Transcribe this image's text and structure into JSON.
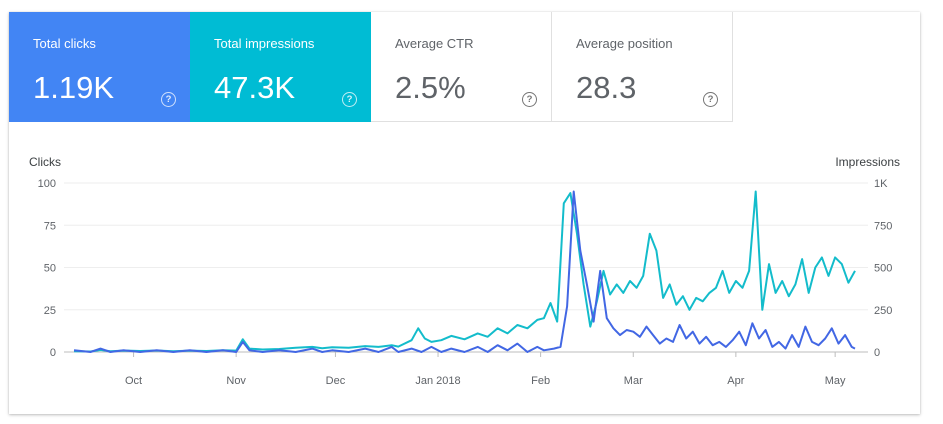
{
  "metrics": [
    {
      "label": "Total clicks",
      "value": "1.19K",
      "color": "#4285f4"
    },
    {
      "label": "Total impressions",
      "value": "47.3K",
      "color": "#00bcd4"
    },
    {
      "label": "Average CTR",
      "value": "2.5%"
    },
    {
      "label": "Average position",
      "value": "28.3"
    }
  ],
  "help_glyph": "?",
  "chart_data": {
    "type": "line",
    "xlabel": "",
    "y_left_label": "Clicks",
    "y_right_label": "Impressions",
    "y_left_ticks": [
      "0",
      "25",
      "50",
      "75",
      "100"
    ],
    "y_right_ticks": [
      "0",
      "250",
      "500",
      "750",
      "1K"
    ],
    "y_left_range": [
      0,
      100
    ],
    "y_right_range": [
      0,
      1000
    ],
    "x_ticks": [
      "Oct",
      "Nov",
      "Dec",
      "Jan 2018",
      "Feb",
      "Mar",
      "Apr",
      "May"
    ],
    "x_tick_dates": [
      "2017-10-01",
      "2017-11-01",
      "2017-12-01",
      "2018-01-01",
      "2018-02-01",
      "2018-03-01",
      "2018-04-01",
      "2018-05-01"
    ],
    "x_range": [
      "2017-09-13",
      "2018-05-07"
    ],
    "grid": true,
    "series": [
      {
        "name": "Clicks",
        "axis": "left",
        "color": "#4267e4",
        "points": [
          [
            "2017-09-13",
            1
          ],
          [
            "2017-09-18",
            0
          ],
          [
            "2017-09-21",
            2
          ],
          [
            "2017-09-24",
            0
          ],
          [
            "2017-09-28",
            1
          ],
          [
            "2017-10-03",
            0
          ],
          [
            "2017-10-08",
            1
          ],
          [
            "2017-10-13",
            0
          ],
          [
            "2017-10-18",
            1
          ],
          [
            "2017-10-23",
            0
          ],
          [
            "2017-10-28",
            1
          ],
          [
            "2017-11-01",
            0
          ],
          [
            "2017-11-03",
            6
          ],
          [
            "2017-11-05",
            1
          ],
          [
            "2017-11-09",
            0
          ],
          [
            "2017-11-14",
            1
          ],
          [
            "2017-11-19",
            0
          ],
          [
            "2017-11-24",
            2
          ],
          [
            "2017-11-27",
            0
          ],
          [
            "2017-11-30",
            1
          ],
          [
            "2017-12-05",
            0
          ],
          [
            "2017-12-10",
            2
          ],
          [
            "2017-12-14",
            0
          ],
          [
            "2017-12-18",
            3
          ],
          [
            "2017-12-20",
            0
          ],
          [
            "2017-12-24",
            2
          ],
          [
            "2017-12-27",
            0
          ],
          [
            "2017-12-30",
            3
          ],
          [
            "2018-01-02",
            0
          ],
          [
            "2018-01-05",
            2
          ],
          [
            "2018-01-09",
            0
          ],
          [
            "2018-01-13",
            3
          ],
          [
            "2018-01-16",
            0
          ],
          [
            "2018-01-19",
            4
          ],
          [
            "2018-01-22",
            1
          ],
          [
            "2018-01-25",
            5
          ],
          [
            "2018-01-28",
            0
          ],
          [
            "2018-01-31",
            3
          ],
          [
            "2018-02-02",
            1
          ],
          [
            "2018-02-05",
            2
          ],
          [
            "2018-02-07",
            3
          ],
          [
            "2018-02-09",
            27
          ],
          [
            "2018-02-11",
            95
          ],
          [
            "2018-02-13",
            60
          ],
          [
            "2018-02-15",
            40
          ],
          [
            "2018-02-17",
            18
          ],
          [
            "2018-02-19",
            48
          ],
          [
            "2018-02-21",
            20
          ],
          [
            "2018-02-23",
            14
          ],
          [
            "2018-02-25",
            10
          ],
          [
            "2018-02-27",
            13
          ],
          [
            "2018-03-01",
            12
          ],
          [
            "2018-03-03",
            9
          ],
          [
            "2018-03-05",
            15
          ],
          [
            "2018-03-07",
            10
          ],
          [
            "2018-03-09",
            5
          ],
          [
            "2018-03-11",
            8
          ],
          [
            "2018-03-13",
            6
          ],
          [
            "2018-03-15",
            16
          ],
          [
            "2018-03-17",
            8
          ],
          [
            "2018-03-19",
            12
          ],
          [
            "2018-03-21",
            5
          ],
          [
            "2018-03-23",
            9
          ],
          [
            "2018-03-25",
            4
          ],
          [
            "2018-03-27",
            6
          ],
          [
            "2018-03-29",
            3
          ],
          [
            "2018-03-31",
            7
          ],
          [
            "2018-04-02",
            12
          ],
          [
            "2018-04-04",
            4
          ],
          [
            "2018-04-06",
            17
          ],
          [
            "2018-04-08",
            8
          ],
          [
            "2018-04-10",
            13
          ],
          [
            "2018-04-12",
            3
          ],
          [
            "2018-04-14",
            6
          ],
          [
            "2018-04-16",
            2
          ],
          [
            "2018-04-18",
            10
          ],
          [
            "2018-04-20",
            3
          ],
          [
            "2018-04-22",
            15
          ],
          [
            "2018-04-24",
            6
          ],
          [
            "2018-04-26",
            4
          ],
          [
            "2018-04-28",
            8
          ],
          [
            "2018-04-30",
            14
          ],
          [
            "2018-05-02",
            5
          ],
          [
            "2018-05-04",
            10
          ],
          [
            "2018-05-06",
            3
          ],
          [
            "2018-05-07",
            2
          ]
        ]
      },
      {
        "name": "Impressions",
        "axis": "right",
        "color": "#13bccb",
        "points": [
          [
            "2017-09-13",
            5
          ],
          [
            "2017-09-18",
            3
          ],
          [
            "2017-09-21",
            12
          ],
          [
            "2017-09-24",
            4
          ],
          [
            "2017-09-28",
            8
          ],
          [
            "2017-10-03",
            6
          ],
          [
            "2017-10-08",
            9
          ],
          [
            "2017-10-13",
            5
          ],
          [
            "2017-10-18",
            8
          ],
          [
            "2017-10-23",
            6
          ],
          [
            "2017-10-28",
            10
          ],
          [
            "2017-11-01",
            8
          ],
          [
            "2017-11-03",
            75
          ],
          [
            "2017-11-05",
            20
          ],
          [
            "2017-11-09",
            15
          ],
          [
            "2017-11-14",
            18
          ],
          [
            "2017-11-19",
            25
          ],
          [
            "2017-11-24",
            30
          ],
          [
            "2017-11-27",
            22
          ],
          [
            "2017-11-30",
            28
          ],
          [
            "2017-12-05",
            25
          ],
          [
            "2017-12-10",
            35
          ],
          [
            "2017-12-14",
            30
          ],
          [
            "2017-12-18",
            40
          ],
          [
            "2017-12-20",
            32
          ],
          [
            "2017-12-24",
            70
          ],
          [
            "2017-12-26",
            140
          ],
          [
            "2017-12-28",
            80
          ],
          [
            "2017-12-30",
            60
          ],
          [
            "2018-01-02",
            70
          ],
          [
            "2018-01-05",
            95
          ],
          [
            "2018-01-09",
            75
          ],
          [
            "2018-01-13",
            110
          ],
          [
            "2018-01-16",
            90
          ],
          [
            "2018-01-19",
            140
          ],
          [
            "2018-01-22",
            110
          ],
          [
            "2018-01-25",
            160
          ],
          [
            "2018-01-28",
            140
          ],
          [
            "2018-01-31",
            190
          ],
          [
            "2018-02-02",
            200
          ],
          [
            "2018-02-04",
            290
          ],
          [
            "2018-02-06",
            180
          ],
          [
            "2018-02-08",
            880
          ],
          [
            "2018-02-10",
            940
          ],
          [
            "2018-02-12",
            700
          ],
          [
            "2018-02-14",
            400
          ],
          [
            "2018-02-16",
            150
          ],
          [
            "2018-02-18",
            300
          ],
          [
            "2018-02-20",
            480
          ],
          [
            "2018-02-22",
            340
          ],
          [
            "2018-02-24",
            400
          ],
          [
            "2018-02-26",
            350
          ],
          [
            "2018-02-28",
            420
          ],
          [
            "2018-03-02",
            380
          ],
          [
            "2018-03-04",
            450
          ],
          [
            "2018-03-06",
            700
          ],
          [
            "2018-03-08",
            600
          ],
          [
            "2018-03-10",
            320
          ],
          [
            "2018-03-12",
            400
          ],
          [
            "2018-03-14",
            280
          ],
          [
            "2018-03-16",
            330
          ],
          [
            "2018-03-18",
            250
          ],
          [
            "2018-03-20",
            320
          ],
          [
            "2018-03-22",
            300
          ],
          [
            "2018-03-24",
            350
          ],
          [
            "2018-03-26",
            380
          ],
          [
            "2018-03-28",
            480
          ],
          [
            "2018-03-30",
            350
          ],
          [
            "2018-04-01",
            420
          ],
          [
            "2018-04-03",
            380
          ],
          [
            "2018-04-05",
            480
          ],
          [
            "2018-04-07",
            950
          ],
          [
            "2018-04-09",
            250
          ],
          [
            "2018-04-11",
            520
          ],
          [
            "2018-04-13",
            350
          ],
          [
            "2018-04-15",
            420
          ],
          [
            "2018-04-17",
            330
          ],
          [
            "2018-04-19",
            400
          ],
          [
            "2018-04-21",
            550
          ],
          [
            "2018-04-23",
            350
          ],
          [
            "2018-04-25",
            500
          ],
          [
            "2018-04-27",
            560
          ],
          [
            "2018-04-29",
            450
          ],
          [
            "2018-05-01",
            560
          ],
          [
            "2018-05-03",
            520
          ],
          [
            "2018-05-05",
            410
          ],
          [
            "2018-05-07",
            480
          ]
        ]
      }
    ]
  }
}
